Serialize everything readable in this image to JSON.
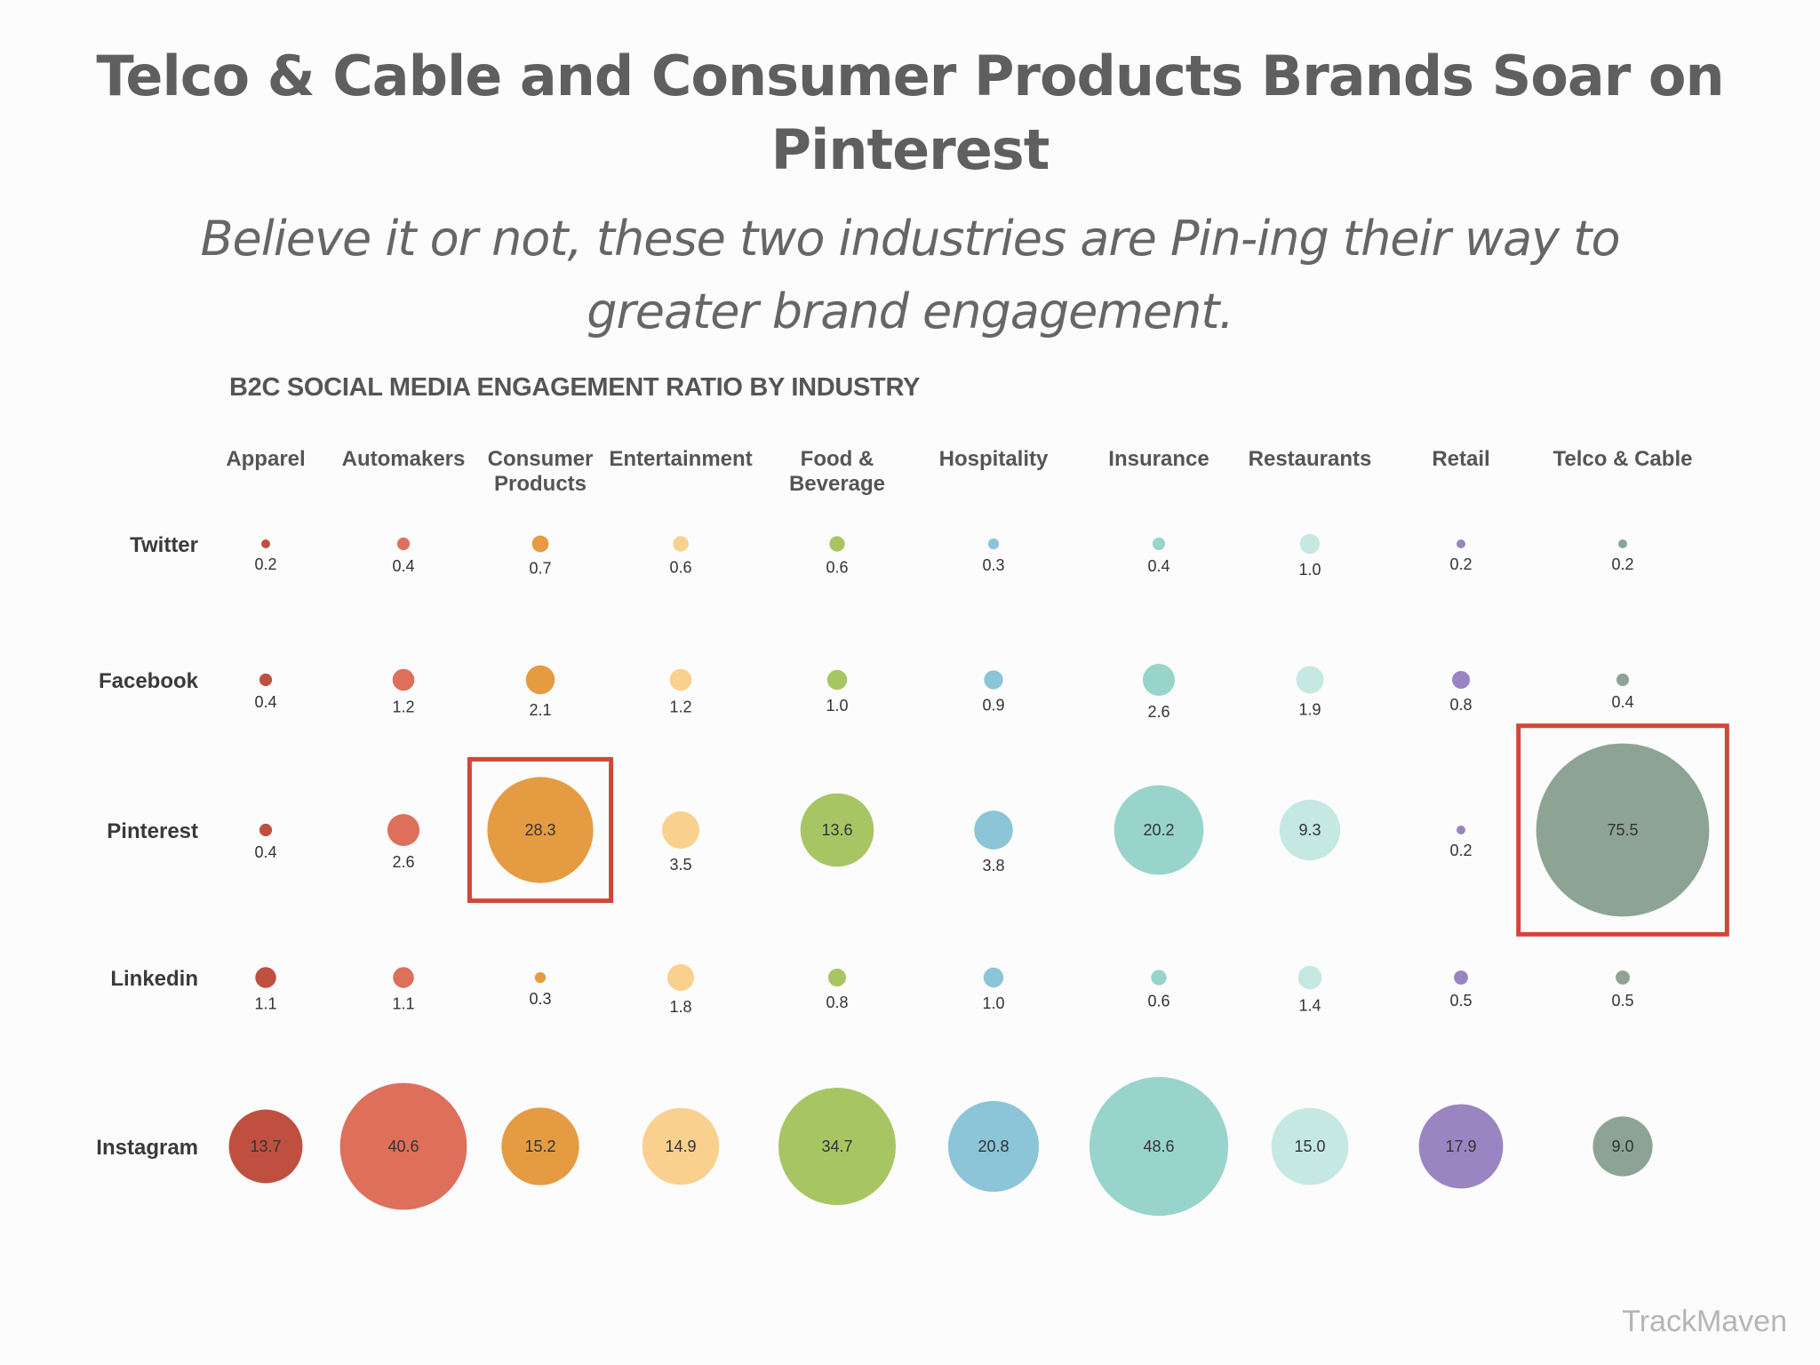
{
  "header": {
    "title": "Telco & Cable and Consumer Products Brands Soar on Pinterest",
    "subtitle": "Believe it or not, these two industries are Pin-ing their way to greater brand engagement."
  },
  "brand": {
    "watermark": "TrackMaven"
  },
  "colors": {
    "text": "#555555",
    "highlight": "#d0473a",
    "industries": [
      "#bf5040",
      "#de6f5a",
      "#e59b42",
      "#f9d08e",
      "#a8c564",
      "#8cc4d8",
      "#98d4cb",
      "#c5e8e2",
      "#9b84c2",
      "#8da494"
    ]
  },
  "chart_data": {
    "type": "bubble",
    "title": "B2C SOCIAL MEDIA ENGAGEMENT RATIO BY INDUSTRY",
    "columns": [
      "Apparel",
      "Automakers",
      "Consumer Products",
      "Entertainment",
      "Food & Beverage",
      "Hospitality",
      "Insurance",
      "Restaurants",
      "Retail",
      "Telco & Cable"
    ],
    "rows": [
      "Twitter",
      "Facebook",
      "Pinterest",
      "Linkedin",
      "Instagram"
    ],
    "values": [
      [
        0.2,
        0.4,
        0.7,
        0.6,
        0.6,
        0.3,
        0.4,
        1.0,
        0.2,
        0.2
      ],
      [
        0.4,
        1.2,
        2.1,
        1.2,
        1.0,
        0.9,
        2.6,
        1.9,
        0.8,
        0.4
      ],
      [
        0.4,
        2.6,
        28.3,
        3.5,
        13.6,
        3.8,
        20.2,
        9.3,
        0.2,
        75.5
      ],
      [
        1.1,
        1.1,
        0.3,
        1.8,
        0.8,
        1.0,
        0.6,
        1.4,
        0.5,
        0.5
      ],
      [
        13.7,
        40.6,
        15.2,
        14.9,
        34.7,
        20.8,
        48.6,
        15.0,
        17.9,
        9.0
      ]
    ],
    "value_labels": [
      [
        "0.2",
        "0.4",
        "0.7",
        "0.6",
        "0.6",
        "0.3",
        "0.4",
        "1.0",
        "0.2",
        "0.2"
      ],
      [
        "0.4",
        "1.2",
        "2.1",
        "1.2",
        "1.0",
        "0.9",
        "2.6",
        "1.9",
        "0.8",
        "0.4"
      ],
      [
        "0.4",
        "2.6",
        "28.3",
        "3.5",
        "13.6",
        "3.8",
        "20.2",
        "9.3",
        "0.2",
        "75.5"
      ],
      [
        "1.1",
        "1.1",
        "0.3",
        "1.8",
        "0.8",
        "1.0",
        "0.6",
        "1.4",
        "0.5",
        "0.5"
      ],
      [
        "13.7",
        "40.6",
        "15.2",
        "14.9",
        "34.7",
        "20.8",
        "48.6",
        "15.0",
        "17.9",
        "9.0"
      ]
    ],
    "highlighted": [
      {
        "row": "Pinterest",
        "column": "Consumer Products"
      },
      {
        "row": "Pinterest",
        "column": "Telco & Cable"
      }
    ]
  }
}
